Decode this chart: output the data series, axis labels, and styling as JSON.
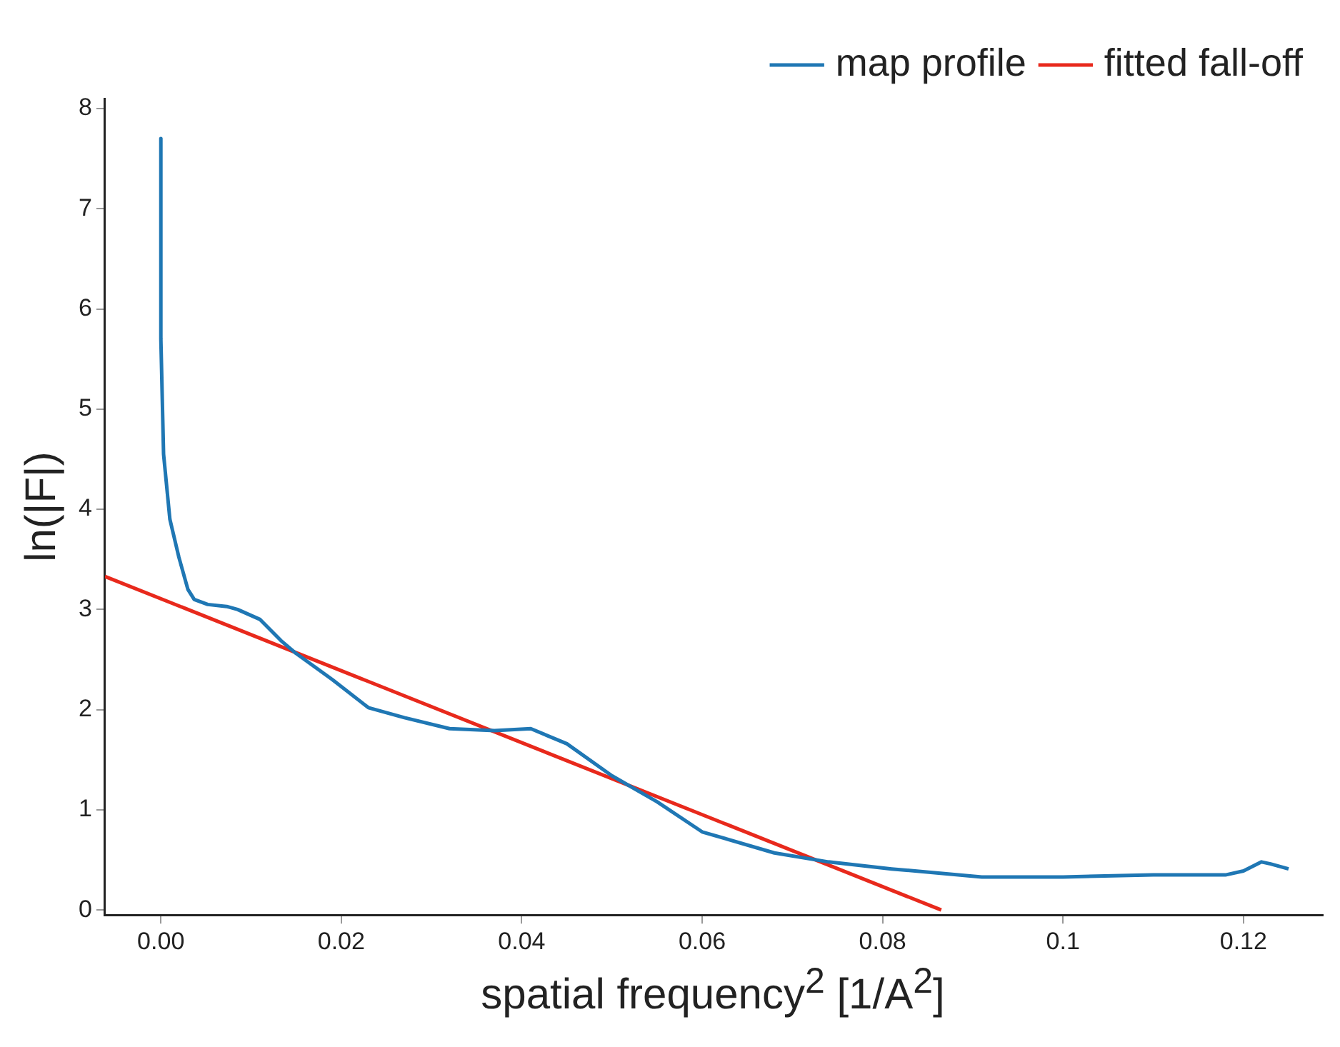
{
  "chart_data": {
    "type": "line",
    "xlabel": "spatial frequency$^{2}$ [1/A$^{2}$]",
    "ylabel": "ln(|F|)",
    "xlim": [
      -0.0062,
      0.1288
    ],
    "ylim": [
      -0.05,
      8.1
    ],
    "xticks": [
      {
        "value": 0,
        "label": "0.00"
      },
      0.02,
      0.04,
      0.06,
      0.08,
      0.1,
      0.12
    ],
    "yticks": [
      0,
      1,
      2,
      3,
      4,
      5,
      6,
      7,
      8
    ],
    "grid": false,
    "legend": "top right",
    "marker": "none",
    "line_style": "solid",
    "series": [
      {
        "name": "map profile",
        "color": "#1f77b4",
        "x": [
          0,
          0,
          0.0003,
          0.001,
          0.002,
          0.003,
          0.0037,
          0.0052,
          0.0073,
          0.0085,
          0.011,
          0.0133,
          0.015,
          0.019,
          0.023,
          0.027,
          0.032,
          0.037,
          0.041,
          0.045,
          0.05,
          0.055,
          0.06,
          0.068,
          0.074,
          0.081,
          0.091,
          0.1,
          0.11,
          0.118,
          0.12,
          0.122,
          0.123,
          0.125
        ],
        "values": [
          7.7,
          5.7,
          4.55,
          3.9,
          3.52,
          3.2,
          3.1,
          3.05,
          3.03,
          3.0,
          2.9,
          2.69,
          2.56,
          2.3,
          2.02,
          1.92,
          1.81,
          1.79,
          1.81,
          1.66,
          1.34,
          1.08,
          0.78,
          0.57,
          0.48,
          0.41,
          0.33,
          0.33,
          0.35,
          0.35,
          0.39,
          0.48,
          0.46,
          0.41
        ]
      },
      {
        "name": "fitted fall-off",
        "color": "#e8291c",
        "x": [
          -0.0062,
          0.0865
        ],
        "values": [
          3.33,
          0
        ]
      }
    ]
  }
}
